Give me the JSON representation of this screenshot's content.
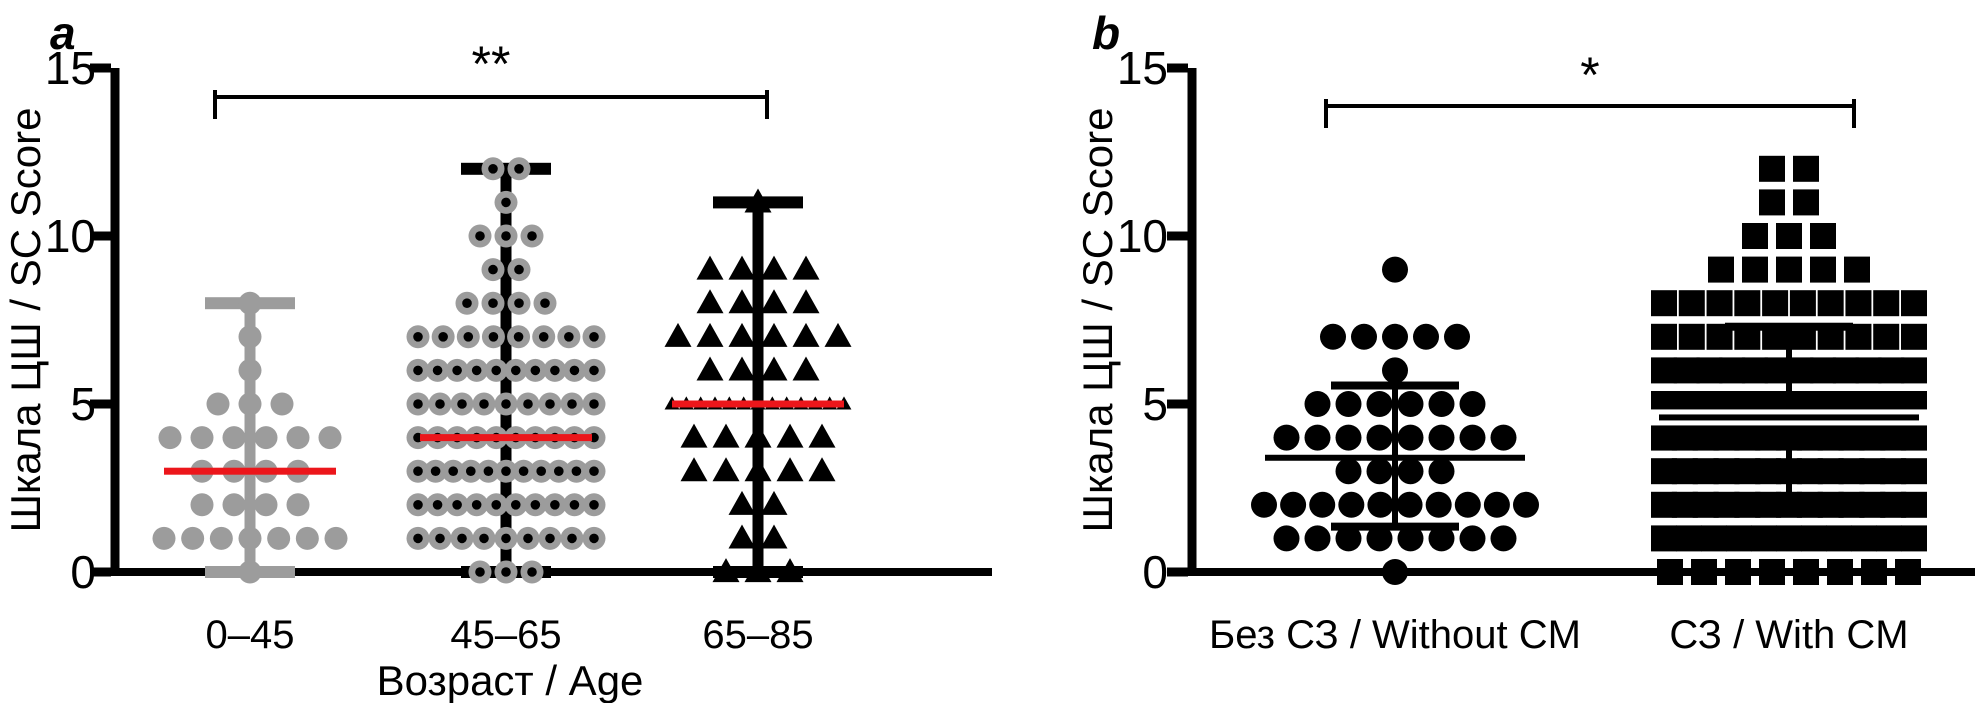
{
  "figure": {
    "background": "#ffffff",
    "colors": {
      "black": "#000000",
      "gray_marker": "#9c9c9c",
      "median_line_red": "#ec161b"
    }
  },
  "chart_data": [
    {
      "type": "scatter",
      "panel_label": "a",
      "title": "",
      "ylabel": "Шкала ЦШ / SC Score",
      "xlabel": "Возраст / Age",
      "ylim": [
        0,
        15
      ],
      "yticks": [
        0,
        5,
        10,
        15
      ],
      "categories": [
        "0–45",
        "45–65",
        "65–85"
      ],
      "significance": {
        "label": "**",
        "between": [
          "0–45",
          "65–85"
        ]
      },
      "legend": "none",
      "grid": false,
      "series": [
        {
          "name": "0–45",
          "marker": "circle-gray",
          "summary": "median+range",
          "median": 3,
          "whisker_low": 0,
          "whisker_high": 8,
          "error_color": "#9c9c9c",
          "median_color": "#ec161b",
          "value_counts": {
            "0": 1,
            "1": 7,
            "2": 4,
            "3": 4,
            "4": 6,
            "5": 3,
            "6": 1,
            "7": 1,
            "8": 1
          }
        },
        {
          "name": "45–65",
          "marker": "circle-gray-blackdot",
          "summary": "median+range",
          "median": 4,
          "whisker_low": 0,
          "whisker_high": 12,
          "error_color": "#000000",
          "median_color": "#ec161b",
          "value_counts": {
            "0": 3,
            "1": 9,
            "2": 10,
            "3": 11,
            "4": 10,
            "5": 9,
            "6": 10,
            "7": 8,
            "8": 4,
            "9": 2,
            "10": 3,
            "11": 1,
            "12": 2
          }
        },
        {
          "name": "65–85",
          "marker": "triangle-black",
          "summary": "median+range",
          "median": 5,
          "whisker_low": 0,
          "whisker_high": 11,
          "error_color": "#000000",
          "median_color": "#ec161b",
          "value_counts": {
            "0": 3,
            "1": 2,
            "2": 2,
            "3": 5,
            "4": 5,
            "5": 13,
            "6": 4,
            "7": 6,
            "8": 4,
            "9": 4,
            "11": 1
          }
        }
      ]
    },
    {
      "type": "scatter",
      "panel_label": "b",
      "title": "",
      "ylabel": "Шкала ЦШ / SC Score",
      "xlabel": "",
      "ylim": [
        0,
        15
      ],
      "yticks": [
        0,
        5,
        10,
        15
      ],
      "categories": [
        "Без СЗ / Without CM",
        "СЗ / With CM"
      ],
      "significance": {
        "label": "*",
        "between": [
          "Без СЗ / Without CM",
          "СЗ / With CM"
        ]
      },
      "legend": "none",
      "grid": false,
      "series": [
        {
          "name": "Без СЗ / Without CM",
          "marker": "circle-black",
          "summary": "mean+sd",
          "mean": 3.4,
          "err_low": 1.35,
          "err_high": 5.55,
          "error_color": "#000000",
          "mean_color": "#000000",
          "value_counts": {
            "0": 1,
            "1": 8,
            "2": 10,
            "3": 4,
            "4": 8,
            "5": 6,
            "6": 1,
            "7": 5,
            "9": 1
          }
        },
        {
          "name": "СЗ / With CM",
          "marker": "square-black",
          "summary": "mean+sd",
          "mean": 4.6,
          "err_low": 2.0,
          "err_high": 7.3,
          "mean_gap": true,
          "error_color": "#000000",
          "mean_color": "#000000",
          "value_counts": {
            "0": 8,
            "1": 11,
            "2": 13,
            "3": 13,
            "4": 13,
            "5": 13,
            "6": 12,
            "7": 10,
            "8": 10,
            "9": 5,
            "10": 3,
            "11": 2,
            "12": 2
          }
        }
      ]
    }
  ]
}
